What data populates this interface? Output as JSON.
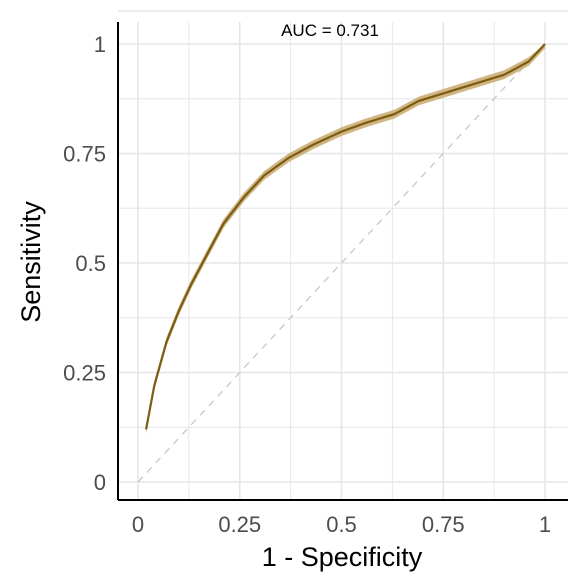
{
  "chart_data": {
    "type": "line",
    "title": "",
    "xlabel": "1 - Specificity",
    "ylabel": "Sensitivity",
    "xlim": [
      0,
      1
    ],
    "ylim": [
      0,
      1
    ],
    "x_ticks": [
      0,
      0.25,
      0.5,
      0.75,
      1
    ],
    "x_tick_labels": [
      "0",
      "0.25",
      "0.5",
      "0.75",
      "1"
    ],
    "y_ticks": [
      0,
      0.25,
      0.5,
      0.75,
      1
    ],
    "y_tick_labels": [
      "0",
      "0.25",
      "0.5",
      "0.75",
      "1"
    ],
    "grid": true,
    "annotation": "AUC = 0.731",
    "reference_line": {
      "x": [
        0,
        1
      ],
      "y": [
        0,
        1
      ],
      "style": "dashed",
      "color": "#c8c8c8"
    },
    "series": [
      {
        "x": [
          0.02,
          0.04,
          0.07,
          0.1,
          0.13,
          0.17,
          0.21,
          0.26,
          0.31,
          0.37,
          0.43,
          0.5,
          0.56,
          0.63,
          0.69,
          0.76,
          0.83,
          0.9,
          0.96,
          1.0
        ],
        "y": [
          0.12,
          0.22,
          0.32,
          0.39,
          0.45,
          0.52,
          0.59,
          0.65,
          0.7,
          0.74,
          0.77,
          0.8,
          0.82,
          0.84,
          0.87,
          0.89,
          0.91,
          0.93,
          0.96,
          1.0
        ],
        "band": 0.01
      }
    ],
    "colors": {
      "line": "#7a5c12",
      "band": "#c9a96e",
      "grid": "#e6e6e6"
    }
  }
}
